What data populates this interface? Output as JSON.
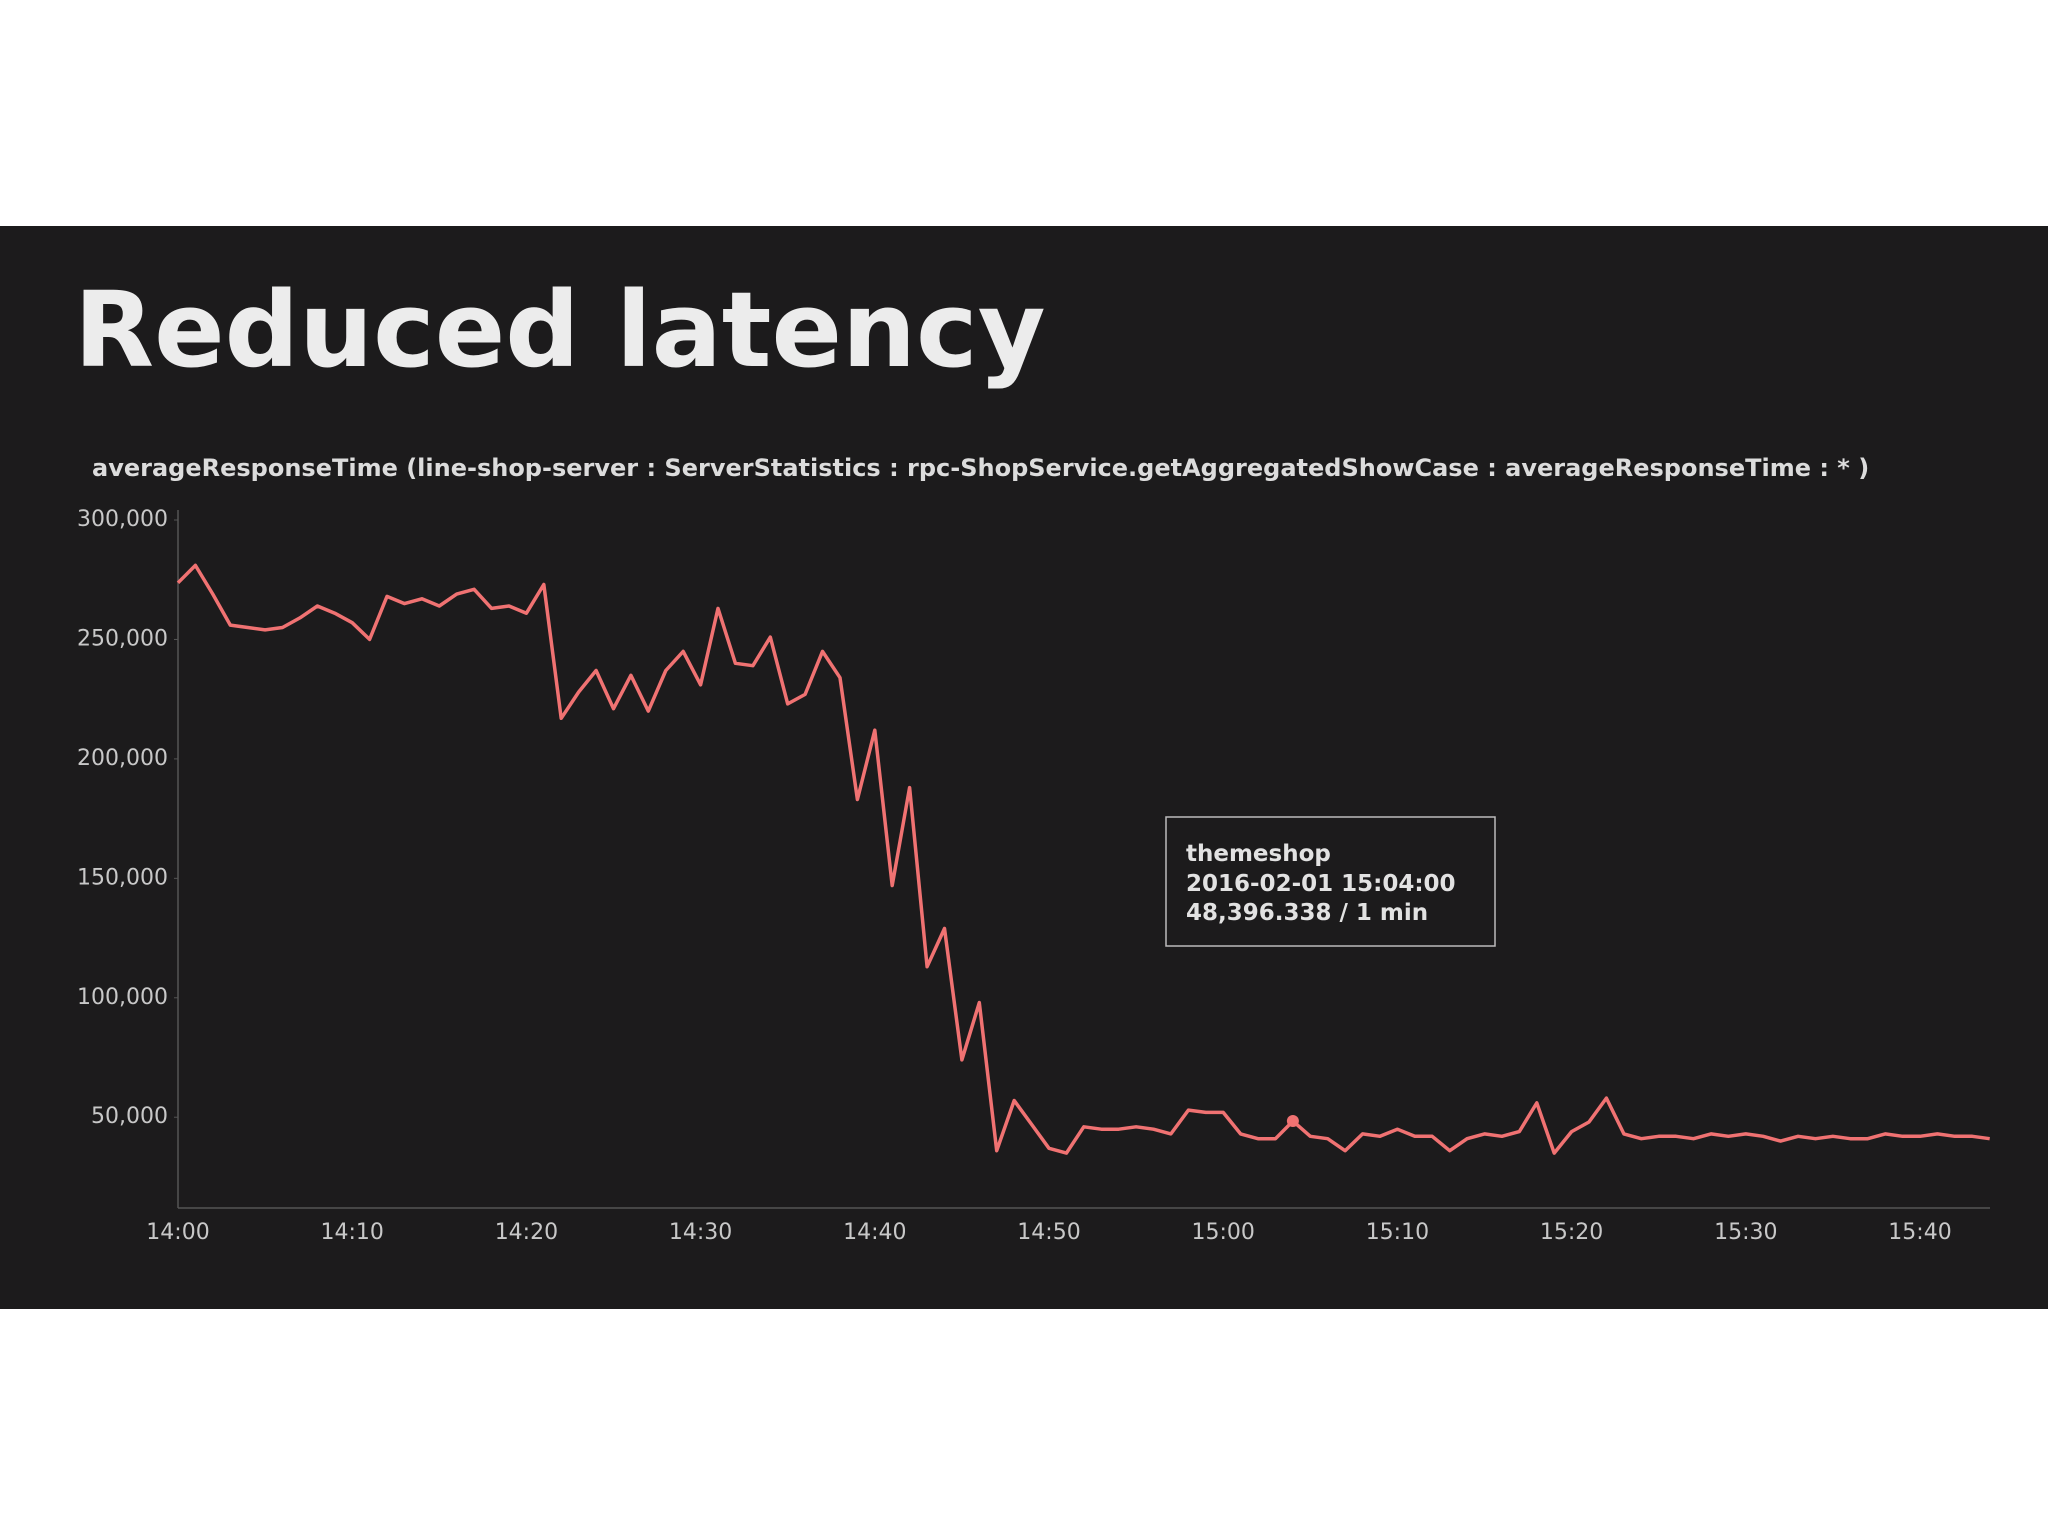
{
  "chart_data": {
    "type": "line",
    "title": "Reduced latency",
    "subtitle": "averageResponseTime (line-shop-server : ServerStatistics : rpc-ShopService.getAggregatedShowCase : averageResponseTime : * )",
    "categories": [
      "14:00",
      null,
      null,
      null,
      null,
      null,
      null,
      null,
      null,
      null,
      "14:10",
      null,
      null,
      null,
      null,
      null,
      null,
      null,
      null,
      null,
      "14:20",
      null,
      null,
      null,
      null,
      null,
      null,
      null,
      null,
      null,
      "14:30",
      null,
      null,
      null,
      null,
      null,
      null,
      null,
      null,
      null,
      "14:40",
      null,
      null,
      null,
      null,
      null,
      null,
      null,
      null,
      null,
      "14:50",
      null,
      null,
      null,
      null,
      null,
      null,
      null,
      null,
      null,
      "15:00",
      null,
      null,
      null,
      null,
      null,
      null,
      null,
      null,
      null,
      "15:10",
      null,
      null,
      null,
      null,
      null,
      null,
      null,
      null,
      null,
      "15:20",
      null,
      null,
      null,
      null,
      null,
      null,
      null,
      null,
      null,
      "15:30",
      null,
      null,
      null,
      null,
      null,
      null,
      null,
      null,
      null,
      "15:40",
      null,
      null,
      null,
      null
    ],
    "series": [
      {
        "name": "themeshop",
        "color": "#f07272",
        "values": [
          273700,
          281000,
          269000,
          256000,
          255000,
          254000,
          255000,
          259000,
          264000,
          261000,
          257000,
          250000,
          268000,
          265000,
          267000,
          264000,
          269000,
          271000,
          263000,
          264000,
          261000,
          273000,
          217000,
          228000,
          237000,
          221000,
          235000,
          220000,
          237000,
          245000,
          231000,
          263000,
          240000,
          239000,
          251000,
          223000,
          227000,
          245000,
          234000,
          183000,
          212000,
          147000,
          188000,
          113000,
          129000,
          74000,
          98000,
          36000,
          57000,
          47000,
          37000,
          35000,
          46000,
          45000,
          45000,
          46000,
          45000,
          43000,
          53000,
          52000,
          52000,
          43000,
          41000,
          41000,
          48396.338,
          42000,
          41000,
          36000,
          43000,
          42000,
          45000,
          42000,
          42000,
          36000,
          41000,
          43000,
          42000,
          44000,
          56000,
          35000,
          44000,
          48000,
          58000,
          43000,
          41000,
          42000,
          42000,
          41000,
          43000,
          42000,
          43000,
          42000,
          40000,
          42000,
          41000,
          42000,
          41000,
          41000,
          43000,
          42000,
          42000,
          43000,
          42000,
          42000,
          41000
        ]
      }
    ],
    "ylim": [
      12000,
      300000
    ],
    "yticks": [
      {
        "value": 50000,
        "label": "50,000"
      },
      {
        "value": 100000,
        "label": "100,000"
      },
      {
        "value": 150000,
        "label": "150,000"
      },
      {
        "value": 200000,
        "label": "200,000"
      },
      {
        "value": 250000,
        "label": "250,000"
      },
      {
        "value": 300000,
        "label": "300,000"
      }
    ],
    "tooltip": {
      "index": 64,
      "time": "2016-02-01 15:04:00",
      "text": "48,396.338 / 1 min"
    },
    "grid": false
  }
}
